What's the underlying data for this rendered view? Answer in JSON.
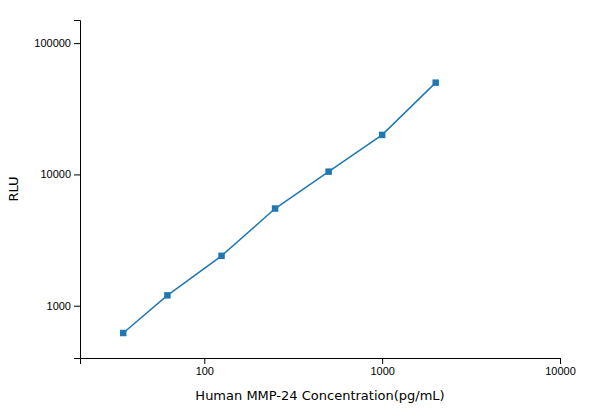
{
  "chart_data": {
    "type": "line",
    "x": [
      35,
      62,
      125,
      250,
      500,
      1000,
      2000
    ],
    "values": [
      620,
      1200,
      2400,
      5500,
      10500,
      20000,
      50000
    ],
    "xlabel": "Human MMP-24 Concentration(pg/mL)",
    "ylabel": "RLU",
    "xlim": [
      20,
      10000
    ],
    "ylim": [
      400,
      150000
    ],
    "xticks": [
      100,
      1000,
      10000
    ],
    "yticks": [
      1000,
      10000,
      100000
    ],
    "log": true,
    "marker": "square",
    "grid": false
  }
}
